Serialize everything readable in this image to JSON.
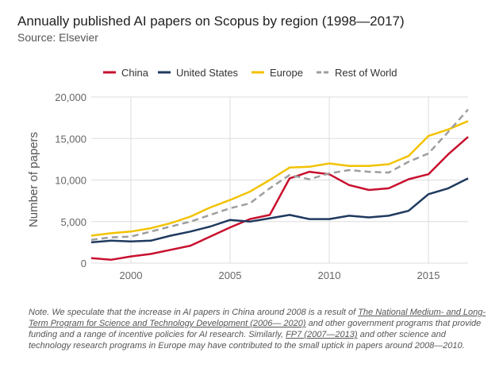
{
  "header": {
    "title": "Annually published AI papers on Scopus by region (1998—2017)",
    "subtitle": "Source: Elsevier"
  },
  "colors": {
    "china": "#c8102e",
    "united_states": "#1f3a5f",
    "europe": "#f2c200",
    "rest_of_world": "#9e9e9e",
    "grid": "#dddddd",
    "axis_text": "#666666"
  },
  "chart_data": {
    "type": "line",
    "x": [
      1998,
      1999,
      2000,
      2001,
      2002,
      2003,
      2004,
      2005,
      2006,
      2007,
      2008,
      2009,
      2010,
      2011,
      2012,
      2013,
      2014,
      2015,
      2016,
      2017
    ],
    "series": [
      {
        "name": "China",
        "style": "solid",
        "color": "#c8102e",
        "values": [
          600,
          400,
          800,
          1100,
          1600,
          2100,
          3200,
          4300,
          5300,
          5800,
          10200,
          11000,
          10700,
          9400,
          8800,
          9000,
          10100,
          10700,
          13100,
          15200
        ]
      },
      {
        "name": "United States",
        "style": "solid",
        "color": "#1f3a5f",
        "values": [
          2500,
          2700,
          2600,
          2700,
          3300,
          3800,
          4400,
          5200,
          5000,
          5400,
          5800,
          5300,
          5300,
          5700,
          5500,
          5700,
          6300,
          8300,
          9000,
          10200
        ]
      },
      {
        "name": "Europe",
        "style": "solid",
        "color": "#f2c200",
        "values": [
          3300,
          3600,
          3800,
          4200,
          4800,
          5600,
          6700,
          7600,
          8600,
          10000,
          11500,
          11600,
          12000,
          11700,
          11700,
          11900,
          12900,
          15300,
          16100,
          17100
        ]
      },
      {
        "name": "Rest of World",
        "style": "dashed",
        "color": "#9e9e9e",
        "values": [
          2800,
          3100,
          3200,
          3800,
          4400,
          5000,
          5800,
          6600,
          7200,
          9000,
          10600,
          10100,
          10800,
          11200,
          11000,
          10900,
          12200,
          13200,
          15800,
          18500
        ]
      }
    ],
    "xticks": [
      2000,
      2005,
      2010,
      2015
    ],
    "xtick_labels": [
      "2000",
      "2005",
      "2010",
      "2015"
    ],
    "yticks": [
      0,
      5000,
      10000,
      15000,
      20000
    ],
    "ytick_labels": [
      "0",
      "5,000",
      "10,000",
      "15,000",
      "20,000"
    ],
    "ylabel": "Number of papers",
    "xlim": [
      1998,
      2017
    ],
    "ylim": [
      0,
      20000
    ],
    "grid": true,
    "legend_position": "top"
  },
  "note": {
    "part1": "Note. We speculate that the increase in AI papers in China around 2008 is a result of ",
    "link1": "The National Medium- and Long-Term Program for Science and Technology Development (2006— 2020)",
    "part2": " and other government programs that provide funding and a range of incentive policies for AI research. Similarly, ",
    "link2": "FP7 (2007—2013)",
    "part3": " and other science and technology research programs in Europe may have contributed to the small uptick in papers around 2008—2010."
  }
}
